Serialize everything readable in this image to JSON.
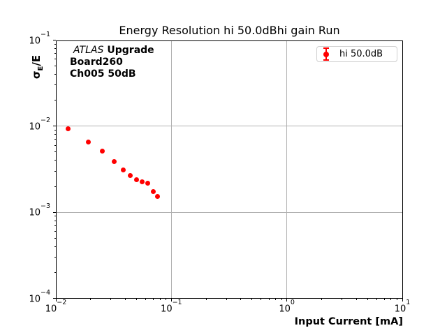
{
  "figure": {
    "title": "Energy Resolution hi 50.0dBhi gain Run",
    "background": "#ffffff"
  },
  "annotation": {
    "line1_italic": "ATLAS",
    "line1_bold": "Upgrade",
    "line2": "Board260",
    "line3": "Ch005 50dB"
  },
  "legend": {
    "label": "hi 50.0dB",
    "marker_color": "#ff0000",
    "border_color": "#cfcfcf",
    "position": "upper right"
  },
  "axes": {
    "xlabel": "Input Current [mA]",
    "ylabel_sigma": "σ",
    "ylabel_subscript": "E",
    "ylabel_suffix": "/E"
  },
  "chart_data": {
    "type": "scatter",
    "title": "Energy Resolution hi 50.0dBhi gain Run",
    "xlabel": "Input Current [mA]",
    "ylabel": "σE/E",
    "xscale": "log",
    "yscale": "log",
    "xlim": [
      0.01,
      10
    ],
    "ylim": [
      0.0001,
      0.1
    ],
    "grid": "major",
    "legend_position": "upper right",
    "x_ticks_exponents": [
      -2,
      -1,
      0,
      1
    ],
    "y_ticks_exponents": [
      -1,
      -2,
      -3,
      -4
    ],
    "x_tick_labels": [
      "10⁻²",
      "10⁻¹",
      "10⁰",
      "10¹"
    ],
    "y_tick_labels": [
      "10⁻¹",
      "10⁻²",
      "10⁻³",
      "10⁻⁴"
    ],
    "series": [
      {
        "name": "hi 50.0dB",
        "marker": "circle-with-errorbar",
        "color": "#ff0000",
        "marker_size_px": 7,
        "x": [
          0.0127,
          0.019,
          0.0254,
          0.0321,
          0.0381,
          0.0442,
          0.0503,
          0.0562,
          0.0626,
          0.0696,
          0.0761
        ],
        "y": [
          0.0093,
          0.0066,
          0.00515,
          0.00386,
          0.00311,
          0.00266,
          0.00238,
          0.00228,
          0.00218,
          0.00174,
          0.00152
        ]
      }
    ]
  },
  "colors": {
    "marker": "#ff0000",
    "grid": "#b0b0b0",
    "spine": "#000000",
    "text": "#000000",
    "legend_border": "#cfcfcf"
  }
}
